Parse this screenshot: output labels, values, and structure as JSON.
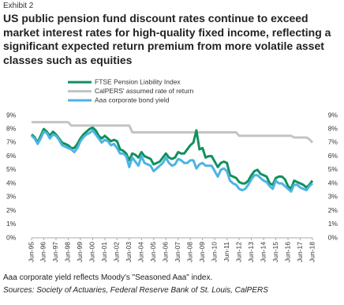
{
  "chart_data": {
    "type": "line",
    "exhibit": "Exhibit 2",
    "title": "US public pension fund discount rates continue to exceed market interest rates for high-quality fixed income, reflecting a significant expected return premium from more volatile asset classes such as equities",
    "footnote": "Aaa corporate yield reflects Moody's \"Seasoned Aaa\" index.",
    "source": "Sources: Society of Actuaries, Federal Reserve Bank of St. Louis, CalPERS",
    "categories": [
      "Jun-95",
      null,
      null,
      null,
      "Jun-96",
      null,
      null,
      null,
      "Jun-97",
      null,
      null,
      null,
      "Jun-98",
      null,
      null,
      null,
      "Jun-99",
      null,
      null,
      null,
      "Jun-00",
      null,
      null,
      null,
      "Jun-01",
      null,
      null,
      null,
      "Jun-02",
      null,
      null,
      null,
      "Jun-03",
      null,
      null,
      null,
      "Jun-04",
      null,
      null,
      null,
      "Jun-05",
      null,
      null,
      null,
      "Jun-06",
      null,
      null,
      null,
      "Jun-07",
      null,
      null,
      null,
      "Jun-08",
      null,
      null,
      null,
      "Jun-09",
      null,
      null,
      null,
      "Jun-10",
      null,
      null,
      null,
      "Jun-11",
      null,
      null,
      null,
      "Jun-12",
      null,
      null,
      null,
      "Jun-13",
      null,
      null,
      null,
      "Jun-14",
      null,
      null,
      null,
      "Jun-15",
      null,
      null,
      null,
      "Jun-16",
      null,
      null,
      null,
      "Jun-17",
      null,
      null,
      null,
      "Jun-18"
    ],
    "series": [
      {
        "name": "FTSE Pension Liability Index",
        "color": "#11905f",
        "width": 3,
        "values": [
          7.6,
          7.4,
          7.0,
          7.5,
          8.0,
          7.8,
          7.5,
          7.8,
          7.6,
          7.3,
          7.0,
          6.9,
          6.8,
          6.6,
          6.6,
          6.9,
          7.3,
          7.6,
          7.8,
          8.0,
          8.1,
          7.9,
          7.5,
          7.3,
          7.5,
          7.3,
          7.1,
          7.2,
          7.1,
          6.5,
          6.4,
          6.2,
          5.7,
          6.2,
          6.1,
          5.9,
          6.3,
          6.0,
          5.9,
          5.8,
          5.4,
          5.5,
          5.6,
          5.9,
          6.2,
          5.9,
          5.8,
          5.9,
          6.3,
          6.2,
          6.2,
          6.5,
          6.8,
          7.0,
          7.9,
          6.5,
          6.6,
          5.9,
          6.0,
          6.0,
          5.6,
          5.2,
          5.5,
          5.6,
          5.5,
          4.6,
          4.5,
          4.4,
          4.1,
          4.0,
          4.0,
          4.2,
          4.6,
          4.9,
          5.0,
          4.7,
          4.6,
          4.5,
          4.0,
          3.9,
          4.4,
          4.5,
          4.5,
          4.3,
          3.8,
          3.6,
          4.2,
          4.1,
          4.0,
          3.9,
          3.7,
          3.9,
          4.2
        ]
      },
      {
        "name": "CalPERS' assumed rate of return",
        "color": "#c4c4c4",
        "width": 3,
        "values": [
          8.5,
          8.5,
          8.5,
          8.5,
          8.5,
          8.5,
          8.5,
          8.5,
          8.5,
          8.5,
          8.5,
          8.5,
          8.5,
          8.25,
          8.25,
          8.25,
          8.25,
          8.25,
          8.25,
          8.25,
          8.25,
          8.25,
          8.25,
          8.25,
          8.25,
          8.25,
          8.25,
          8.25,
          8.25,
          8.25,
          8.25,
          8.25,
          8.25,
          7.75,
          7.75,
          7.75,
          7.75,
          7.75,
          7.75,
          7.75,
          7.75,
          7.75,
          7.75,
          7.75,
          7.75,
          7.75,
          7.75,
          7.75,
          7.75,
          7.75,
          7.75,
          7.75,
          7.75,
          7.75,
          7.75,
          7.75,
          7.75,
          7.75,
          7.75,
          7.75,
          7.75,
          7.75,
          7.75,
          7.75,
          7.75,
          7.75,
          7.75,
          7.75,
          7.5,
          7.5,
          7.5,
          7.5,
          7.5,
          7.5,
          7.5,
          7.5,
          7.5,
          7.5,
          7.5,
          7.5,
          7.5,
          7.5,
          7.5,
          7.5,
          7.5,
          7.5,
          7.375,
          7.375,
          7.375,
          7.375,
          7.375,
          7.25,
          7.0
        ]
      },
      {
        "name": "Aaa corporate bond yield",
        "color": "#4db4e2",
        "width": 3,
        "values": [
          7.5,
          7.3,
          6.9,
          7.3,
          7.8,
          7.7,
          7.3,
          7.6,
          7.5,
          7.2,
          6.8,
          6.7,
          6.6,
          6.5,
          6.3,
          6.6,
          7.1,
          7.4,
          7.6,
          7.7,
          7.9,
          7.6,
          7.3,
          7.0,
          7.2,
          7.1,
          6.8,
          6.9,
          6.6,
          6.2,
          6.2,
          6.0,
          5.2,
          5.9,
          5.6,
          5.3,
          6.0,
          5.5,
          5.4,
          5.3,
          4.9,
          5.1,
          5.3,
          5.5,
          5.9,
          5.5,
          5.3,
          5.4,
          5.8,
          5.7,
          5.5,
          5.5,
          5.7,
          5.7,
          5.1,
          5.4,
          5.5,
          5.3,
          5.3,
          5.3,
          4.9,
          4.5,
          5.0,
          5.1,
          4.9,
          4.2,
          4.0,
          3.9,
          3.6,
          3.5,
          3.6,
          3.9,
          4.3,
          4.6,
          4.6,
          4.4,
          4.2,
          4.1,
          3.8,
          3.6,
          4.2,
          4.0,
          4.0,
          3.8,
          3.6,
          3.4,
          3.9,
          3.9,
          3.7,
          3.6,
          3.5,
          3.8,
          4.0
        ]
      }
    ],
    "ylim": [
      0,
      9
    ],
    "yticks": [
      {
        "value": 0,
        "label": "0%"
      },
      {
        "value": 1,
        "label": "1%"
      },
      {
        "value": 2,
        "label": "2%"
      },
      {
        "value": 3,
        "label": "3%"
      },
      {
        "value": 4,
        "label": "4%"
      },
      {
        "value": 5,
        "label": "5%"
      },
      {
        "value": 6,
        "label": "6%"
      },
      {
        "value": 7,
        "label": "7%"
      },
      {
        "value": 8,
        "label": "8%"
      },
      {
        "value": 9,
        "label": "9%"
      }
    ],
    "y2lim": [
      0,
      9
    ],
    "y2ticks": [
      {
        "value": 0,
        "label": "0%"
      },
      {
        "value": 1,
        "label": "1%"
      },
      {
        "value": 2,
        "label": "2%"
      },
      {
        "value": 3,
        "label": "3%"
      },
      {
        "value": 4,
        "label": "4%"
      },
      {
        "value": 5,
        "label": "5%"
      },
      {
        "value": 6,
        "label": "6%"
      },
      {
        "value": 7,
        "label": "7%"
      },
      {
        "value": 8,
        "label": "8%"
      },
      {
        "value": 9,
        "label": "9%"
      }
    ]
  }
}
